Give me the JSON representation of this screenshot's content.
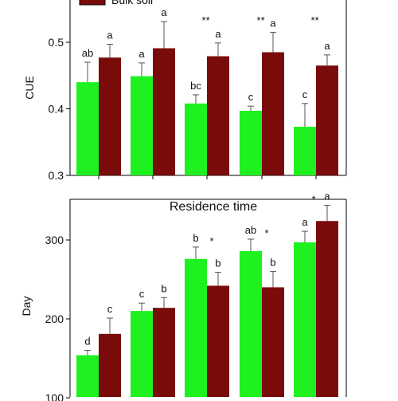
{
  "colors": {
    "green": "#1ff01f",
    "maroon": "#7a0b0b",
    "axis": "#000000",
    "error": "#555555"
  },
  "legend": {
    "bulk_label": "Bulk soil"
  },
  "chart_data": [
    {
      "type": "bar",
      "title": "",
      "ylabel": "CUE",
      "ylim": [
        0.3,
        0.56
      ],
      "yticks": [
        "0.3",
        "0.4",
        "0.5"
      ],
      "yticks_values": [
        0.3,
        0.4,
        0.5
      ],
      "categories": [
        "",
        "",
        "",
        "",
        ""
      ],
      "series": [
        {
          "values": [
            0.44,
            0.449,
            0.408,
            0.397,
            0.373
          ],
          "errors": [
            0.03,
            0.02,
            0.013,
            0.007,
            0.035
          ],
          "letters": [
            "ab",
            "a",
            "bc",
            "c",
            "c"
          ],
          "color_key": "green"
        },
        {
          "name": "Bulk soil",
          "values": [
            0.477,
            0.491,
            0.479,
            0.485,
            0.465
          ],
          "errors": [
            0.02,
            0.04,
            0.02,
            0.03,
            0.016
          ],
          "letters": [
            "a",
            "a",
            "a",
            "a",
            "a"
          ],
          "color_key": "maroon"
        }
      ],
      "significance": [
        "",
        "",
        "**",
        "**",
        "**"
      ]
    },
    {
      "type": "bar",
      "title": "Residence time",
      "ylabel": "Day",
      "ylim": [
        100,
        350
      ],
      "yticks": [
        "100",
        "200",
        "300"
      ],
      "yticks_values": [
        100,
        200,
        300
      ],
      "categories": [
        "",
        "",
        "",
        "",
        ""
      ],
      "series": [
        {
          "values": [
            154,
            210,
            276,
            286,
            297
          ],
          "errors": [
            6,
            10,
            15,
            15,
            14
          ],
          "letters": [
            "d",
            "c",
            "b",
            "ab",
            "a"
          ],
          "color_key": "green"
        },
        {
          "values": [
            181,
            214,
            242,
            240,
            324
          ],
          "errors": [
            20,
            13,
            17,
            20,
            20
          ],
          "letters": [
            "c",
            "b",
            "b",
            "b",
            "a"
          ],
          "color_key": "maroon"
        }
      ],
      "significance": [
        "",
        "",
        "*",
        "*",
        "*"
      ]
    }
  ]
}
